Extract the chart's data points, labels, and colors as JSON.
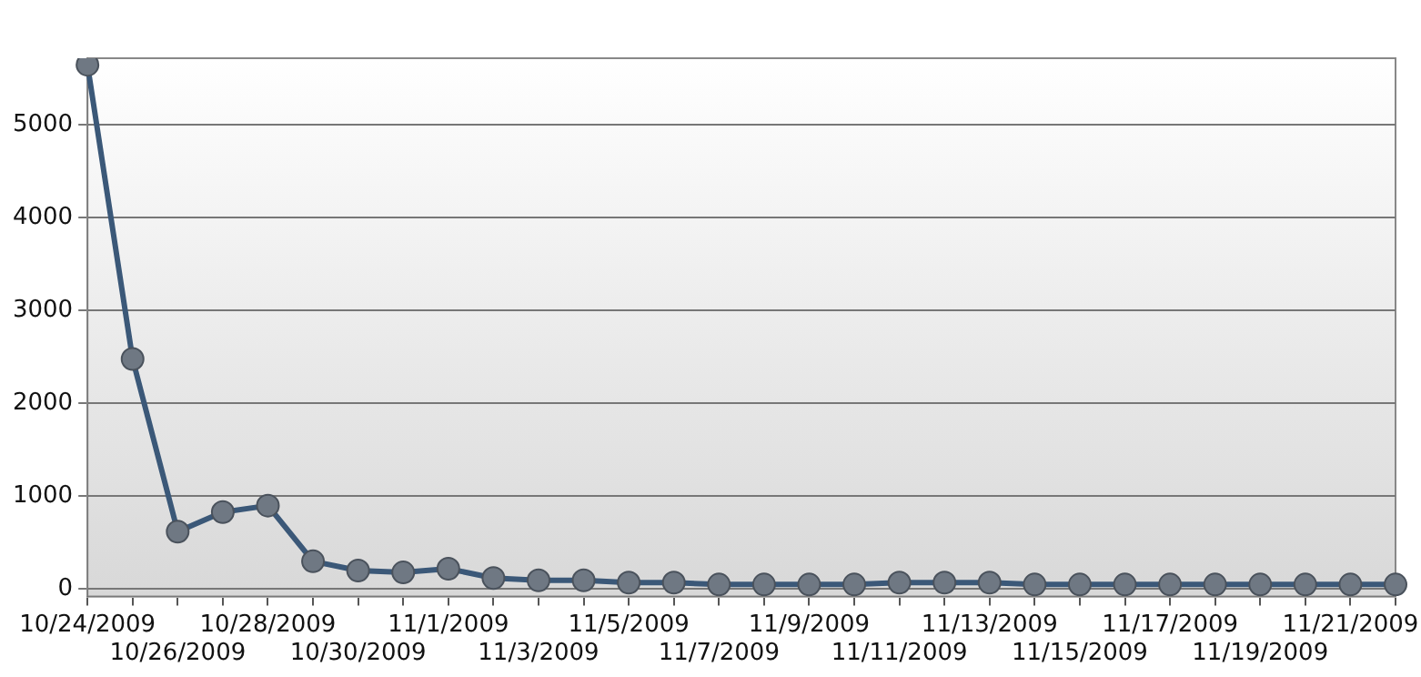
{
  "chart_data": {
    "type": "line",
    "categories": [
      "10/24/2009",
      null,
      "10/26/2009",
      null,
      "10/28/2009",
      null,
      "10/30/2009",
      null,
      "11/1/2009",
      null,
      "11/3/2009",
      null,
      "11/5/2009",
      null,
      "11/7/2009",
      null,
      "11/9/2009",
      null,
      "11/11/2009",
      null,
      "11/13/2009",
      null,
      "11/15/2009",
      null,
      "11/17/2009",
      null,
      "11/19/2009",
      null,
      "11/21/2009",
      null
    ],
    "series": [
      {
        "color": "#3b5878",
        "values": [
          5650,
          2480,
          620,
          830,
          900,
          300,
          200,
          180,
          220,
          120,
          95,
          95,
          70,
          70,
          50,
          50,
          50,
          50,
          70,
          70,
          70,
          50,
          50,
          50,
          50,
          50,
          50,
          50,
          50,
          50
        ]
      }
    ],
    "ylim": [
      -80,
      5720
    ],
    "yticks": [
      0,
      1000,
      2000,
      3000,
      4000,
      5000
    ],
    "grid": "y",
    "marker": "circle",
    "legend": false
  }
}
